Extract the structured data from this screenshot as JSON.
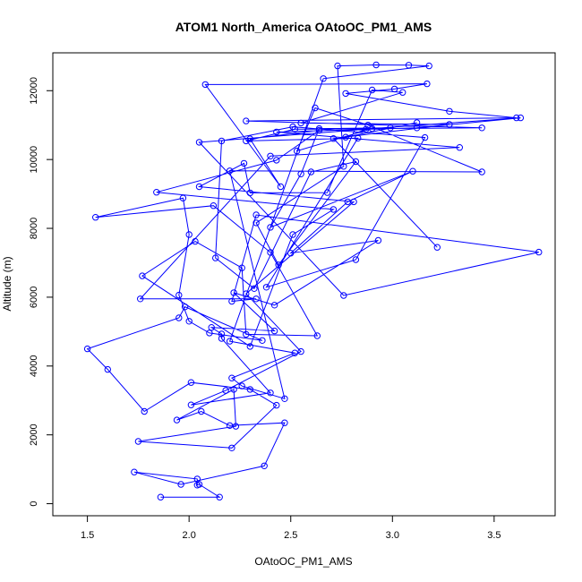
{
  "chart_data": {
    "type": "scatter",
    "title": "ATOM1 North_America OAtoOC_PM1_AMS",
    "xlabel": "OAtoOC_PM1_AMS",
    "ylabel": "Altitude (m)",
    "xlim": [
      1.33,
      3.8
    ],
    "ylim": [
      -350,
      13100
    ],
    "x_ticks": [
      1.5,
      2.0,
      2.5,
      3.0,
      3.5
    ],
    "x_tick_labels": [
      "1.5",
      "2.0",
      "2.5",
      "3.0",
      "3.5"
    ],
    "y_ticks": [
      0,
      2000,
      4000,
      6000,
      8000,
      10000,
      12000
    ],
    "y_tick_labels": [
      "0",
      "2000",
      "4000",
      "6000",
      "8000",
      "10000",
      "12000"
    ],
    "grid": false,
    "series": [
      {
        "color": "#0000ff",
        "marker": "open-circle",
        "line": true,
        "points": [
          [
            1.86,
            190
          ],
          [
            2.15,
            190
          ],
          [
            2.05,
            560
          ],
          [
            2.04,
            540
          ],
          [
            2.04,
            720
          ],
          [
            1.73,
            920
          ],
          [
            1.96,
            560
          ],
          [
            2.37,
            1100
          ],
          [
            2.47,
            2350
          ],
          [
            2.2,
            2270
          ],
          [
            2.06,
            2680
          ],
          [
            1.94,
            2430
          ],
          [
            2.22,
            3320
          ],
          [
            2.23,
            2250
          ],
          [
            1.75,
            1810
          ],
          [
            2.21,
            1620
          ],
          [
            2.43,
            2860
          ],
          [
            2.3,
            3320
          ],
          [
            2.01,
            3520
          ],
          [
            1.78,
            2680
          ],
          [
            1.6,
            3900
          ],
          [
            1.5,
            4500
          ],
          [
            1.95,
            5400
          ],
          [
            1.98,
            5720
          ],
          [
            2.36,
            4740
          ],
          [
            2.1,
            4960
          ],
          [
            2.0,
            5300
          ],
          [
            1.95,
            6060
          ],
          [
            2.0,
            7820
          ],
          [
            1.97,
            8880
          ],
          [
            1.54,
            8320
          ],
          [
            2.12,
            8660
          ],
          [
            2.4,
            7300
          ],
          [
            2.63,
            4880
          ],
          [
            2.28,
            4920
          ],
          [
            2.26,
            6850
          ],
          [
            2.03,
            7620
          ],
          [
            1.77,
            6620
          ],
          [
            2.3,
            4570
          ],
          [
            2.51,
            7820
          ],
          [
            2.71,
            8550
          ],
          [
            1.84,
            9050
          ],
          [
            2.43,
            9980
          ],
          [
            2.64,
            10850
          ],
          [
            2.3,
            10600
          ],
          [
            2.45,
            9210
          ],
          [
            2.08,
            12180
          ],
          [
            3.17,
            12200
          ],
          [
            3.01,
            12050
          ],
          [
            2.77,
            11920
          ],
          [
            3.28,
            11400
          ],
          [
            3.61,
            11210
          ],
          [
            2.28,
            11120
          ],
          [
            3.44,
            10920
          ],
          [
            2.52,
            10880
          ],
          [
            2.28,
            10540
          ],
          [
            2.83,
            10620
          ],
          [
            2.38,
            6290
          ],
          [
            2.82,
            7090
          ],
          [
            3.16,
            10640
          ],
          [
            2.51,
            10950
          ],
          [
            2.16,
            10540
          ],
          [
            2.13,
            7140
          ],
          [
            2.32,
            6250
          ],
          [
            2.6,
            9640
          ],
          [
            2.82,
            9940
          ],
          [
            2.44,
            6940
          ],
          [
            2.33,
            8160
          ],
          [
            2.76,
            9800
          ],
          [
            2.73,
            12720
          ],
          [
            2.92,
            12750
          ],
          [
            3.08,
            12740
          ],
          [
            3.18,
            12720
          ],
          [
            2.66,
            12350
          ],
          [
            2.2,
            4720
          ],
          [
            2.52,
            4380
          ],
          [
            2.21,
            3650
          ],
          [
            2.26,
            3420
          ],
          [
            2.47,
            3050
          ],
          [
            2.2,
            9670
          ],
          [
            3.44,
            9640
          ],
          [
            2.88,
            11000
          ],
          [
            2.62,
            11500
          ],
          [
            2.53,
            10250
          ],
          [
            2.9,
            10900
          ],
          [
            3.63,
            11210
          ],
          [
            3.12,
            10920
          ],
          [
            2.43,
            10800
          ],
          [
            3.33,
            10350
          ],
          [
            2.4,
            10100
          ],
          [
            1.76,
            5950
          ],
          [
            2.33,
            5950
          ],
          [
            2.21,
            5880
          ],
          [
            2.33,
            8390
          ],
          [
            3.72,
            7310
          ],
          [
            2.76,
            6050
          ],
          [
            2.05,
            10500
          ],
          [
            2.87,
            10880
          ],
          [
            2.77,
            10650
          ],
          [
            3.12,
            11070
          ],
          [
            2.99,
            10920
          ],
          [
            2.64,
            10900
          ],
          [
            2.55,
            9580
          ],
          [
            2.4,
            8030
          ],
          [
            3.1,
            9660
          ],
          [
            2.78,
            8770
          ],
          [
            2.5,
            7280
          ],
          [
            2.93,
            7650
          ],
          [
            2.42,
            5770
          ],
          [
            2.22,
            6130
          ],
          [
            2.42,
            5020
          ],
          [
            2.11,
            5120
          ],
          [
            2.16,
            4930
          ],
          [
            2.16,
            4800
          ],
          [
            2.4,
            3220
          ],
          [
            2.01,
            2870
          ],
          [
            2.18,
            3290
          ],
          [
            2.55,
            4420
          ],
          [
            2.28,
            6100
          ],
          [
            2.81,
            8770
          ],
          [
            2.05,
            9210
          ],
          [
            2.27,
            9890
          ],
          [
            2.3,
            9030
          ],
          [
            2.68,
            9040
          ],
          [
            2.9,
            12020
          ],
          [
            3.05,
            11950
          ],
          [
            2.55,
            11060
          ],
          [
            3.28,
            11020
          ],
          [
            2.71,
            10610
          ],
          [
            3.22,
            7450
          ]
        ]
      }
    ]
  }
}
